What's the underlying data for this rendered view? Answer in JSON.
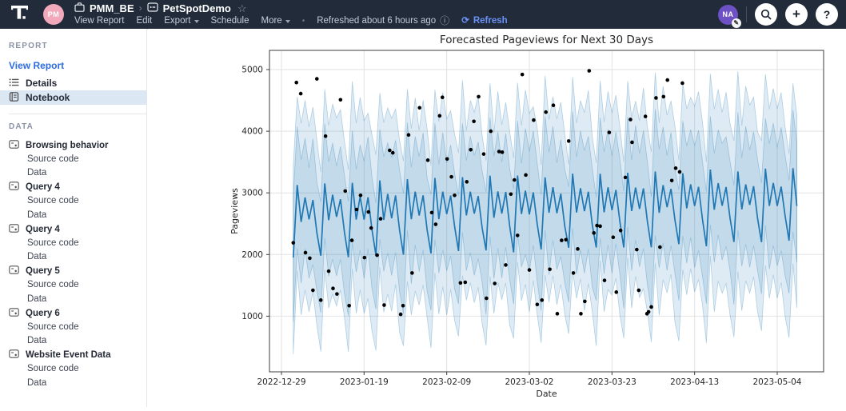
{
  "topbar": {
    "workspace": "PMM_BE",
    "report_name": "PetSpotDemo",
    "breadcrumb_chevron": "›",
    "star": "☆",
    "avatar_left": "PM",
    "avatar_right": "NA",
    "menu": [
      {
        "label": "View Report",
        "caret": false
      },
      {
        "label": "Edit",
        "caret": false
      },
      {
        "label": "Export",
        "caret": true
      },
      {
        "label": "Schedule",
        "caret": false
      },
      {
        "label": "More",
        "caret": true
      }
    ],
    "separator_dot": "•",
    "refreshed_text": "Refreshed about 6 hours ago",
    "info_glyph": "ⓘ",
    "refresh_glyph": "⟳",
    "refresh_label": "Refresh",
    "plus_glyph": "+",
    "help_glyph": "?",
    "pencil_glyph": "✎",
    "colors": {
      "bar_bg": "#212b3a",
      "refresh_blue": "#6a93f8"
    }
  },
  "sidebar": {
    "report_header": "REPORT",
    "view_report_link": "View Report",
    "report_items": [
      {
        "label": "Details",
        "icon": "list-icon",
        "active": false
      },
      {
        "label": "Notebook",
        "icon": "notebook-icon",
        "active": true
      }
    ],
    "data_header": "DATA",
    "data_items": [
      {
        "label": "Browsing behavior",
        "children": [
          "Source code",
          "Data"
        ]
      },
      {
        "label": "Query 4",
        "children": [
          "Source code",
          "Data"
        ]
      },
      {
        "label": "Query 4",
        "children": [
          "Source code",
          "Data"
        ]
      },
      {
        "label": "Query 5",
        "children": [
          "Source code",
          "Data"
        ]
      },
      {
        "label": "Query 6",
        "children": [
          "Source code",
          "Data"
        ]
      },
      {
        "label": "Website Event Data",
        "children": [
          "Source code",
          "Data"
        ]
      }
    ],
    "colors": {
      "link_blue": "#2d6ce0",
      "active_bg": "#dce7f4"
    }
  },
  "chart_data": {
    "type": "line",
    "title": "Forecasted Pageviews for Next 30 Days",
    "xlabel": "Date",
    "ylabel": "Pageviews",
    "x_start_date": "2022-12-29",
    "x_tick_labels": [
      "2022-12-29",
      "2023-01-19",
      "2023-02-09",
      "2023-03-02",
      "2023-03-23",
      "2023-04-13",
      "2023-05-04"
    ],
    "x_tick_days": [
      0,
      21,
      42,
      63,
      84,
      105,
      126
    ],
    "y_ticks": [
      1000,
      2000,
      3000,
      4000,
      5000
    ],
    "ylim": [
      80,
      5300
    ],
    "grid": true,
    "data_start_day": 3,
    "data_end_day": 131,
    "observed_end_day": 102,
    "series": [
      {
        "name": "forecast_yhat",
        "type": "line",
        "color": "#1f77b4",
        "weekly_pattern": [
          1950,
          3150,
          2520,
          2930,
          2560,
          2880,
          2350
        ],
        "trend_per_day": 2,
        "wiggle": 60
      },
      {
        "name": "uncertainty_outer",
        "type": "band",
        "upper_offset": 1500,
        "lower_offset": 1520,
        "jitter": 300,
        "fill_alpha": 0.15,
        "color": "#1f77b4"
      },
      {
        "name": "uncertainty_inner",
        "type": "band",
        "upper_offset": 920,
        "lower_offset": 940,
        "jitter": 220,
        "fill_alpha": 0.15,
        "color": "#1f77b4"
      },
      {
        "name": "observed",
        "type": "scatter",
        "color": "#000000",
        "points": [
          [
            3.0,
            2190
          ],
          [
            3.8,
            4790
          ],
          [
            4.9,
            4610
          ],
          [
            6.1,
            2030
          ],
          [
            7.2,
            1940
          ],
          [
            8.0,
            1420
          ],
          [
            9.0,
            4850
          ],
          [
            10.0,
            1260
          ],
          [
            11.2,
            3920
          ],
          [
            12.0,
            1730
          ],
          [
            13.1,
            1450
          ],
          [
            14.1,
            1360
          ],
          [
            15.0,
            4510
          ],
          [
            16.2,
            3030
          ],
          [
            17.2,
            1170
          ],
          [
            17.9,
            2230
          ],
          [
            19.1,
            2730
          ],
          [
            20.1,
            2960
          ],
          [
            21.1,
            1950
          ],
          [
            22.1,
            2690
          ],
          [
            22.8,
            2430
          ],
          [
            24.3,
            1990
          ],
          [
            25.2,
            2580
          ],
          [
            26.1,
            1180
          ],
          [
            27.5,
            3690
          ],
          [
            28.3,
            3650
          ],
          [
            30.3,
            1030
          ],
          [
            30.9,
            1170
          ],
          [
            32.3,
            3940
          ],
          [
            33.2,
            1700
          ],
          [
            35.1,
            4380
          ],
          [
            37.2,
            3530
          ],
          [
            38.2,
            2680
          ],
          [
            39.2,
            2490
          ],
          [
            40.2,
            4250
          ],
          [
            40.9,
            4550
          ],
          [
            42.1,
            3550
          ],
          [
            43.2,
            3260
          ],
          [
            44.0,
            2960
          ],
          [
            45.5,
            1540
          ],
          [
            46.7,
            1550
          ],
          [
            47.1,
            3180
          ],
          [
            48.1,
            3700
          ],
          [
            48.9,
            4160
          ],
          [
            50.1,
            4560
          ],
          [
            51.4,
            3630
          ],
          [
            52.1,
            1290
          ],
          [
            53.2,
            4000
          ],
          [
            54.2,
            1530
          ],
          [
            55.3,
            3670
          ],
          [
            56.1,
            3660
          ],
          [
            57.0,
            1830
          ],
          [
            58.3,
            2980
          ],
          [
            59.2,
            3210
          ],
          [
            60.0,
            2310
          ],
          [
            61.2,
            4920
          ],
          [
            62.1,
            3290
          ],
          [
            63.0,
            1750
          ],
          [
            64.1,
            4180
          ],
          [
            65.0,
            1190
          ],
          [
            66.2,
            1260
          ],
          [
            67.2,
            4310
          ],
          [
            68.2,
            1760
          ],
          [
            69.1,
            4420
          ],
          [
            70.1,
            1040
          ],
          [
            71.2,
            2230
          ],
          [
            72.3,
            2240
          ],
          [
            73.0,
            3840
          ],
          [
            74.2,
            1700
          ],
          [
            75.3,
            2090
          ],
          [
            76.1,
            1040
          ],
          [
            77.1,
            1240
          ],
          [
            78.2,
            4980
          ],
          [
            79.4,
            2350
          ],
          [
            80.2,
            2470
          ],
          [
            81.0,
            2460
          ],
          [
            82.1,
            1580
          ],
          [
            83.3,
            3980
          ],
          [
            84.3,
            2280
          ],
          [
            85.1,
            1390
          ],
          [
            86.2,
            2390
          ],
          [
            87.4,
            3250
          ],
          [
            88.7,
            4190
          ],
          [
            89.1,
            3820
          ],
          [
            90.3,
            2080
          ],
          [
            90.8,
            1420
          ],
          [
            92.5,
            4240
          ],
          [
            92.9,
            1040
          ],
          [
            93.3,
            1070
          ],
          [
            94.0,
            1150
          ],
          [
            95.2,
            4540
          ],
          [
            96.2,
            2120
          ],
          [
            97.1,
            4560
          ],
          [
            98.1,
            4830
          ],
          [
            99.2,
            3200
          ],
          [
            100.2,
            3400
          ],
          [
            101.2,
            3340
          ],
          [
            101.9,
            4780
          ]
        ]
      }
    ]
  }
}
